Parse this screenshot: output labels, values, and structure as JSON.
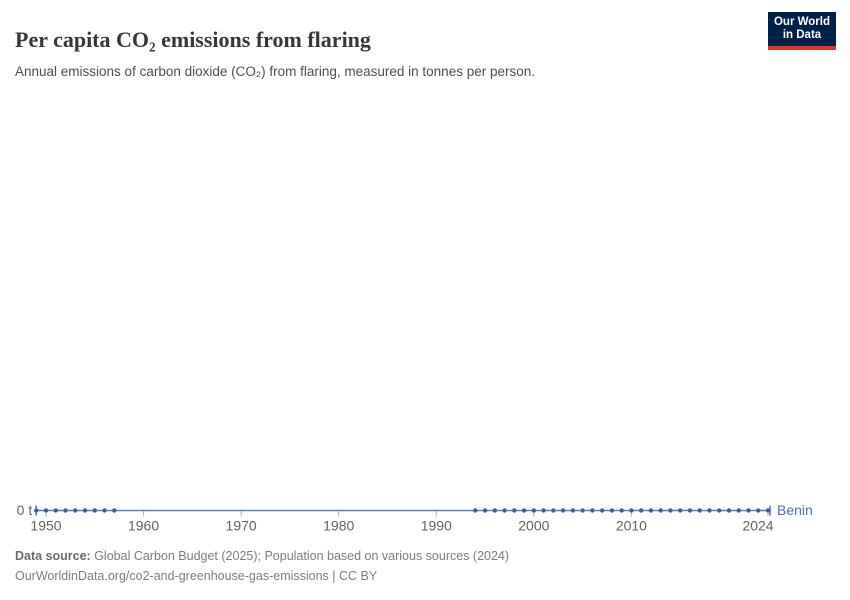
{
  "header": {
    "title": "Per capita CO₂ emissions from flaring",
    "subtitle": "Annual emissions of carbon dioxide (CO₂) from flaring, measured in tonnes per person."
  },
  "logo": {
    "line1": "Our World",
    "line2": "in Data",
    "bg_color": "#002147",
    "bar_color": "#dc3627"
  },
  "chart_data": {
    "type": "line",
    "title": "Per capita CO₂ emissions from flaring",
    "ylabel": "tonnes per person",
    "y_zero_label": "0 t",
    "grid": false,
    "legend_position": "end-of-line",
    "x_axis_ticks": [
      1950,
      1960,
      1970,
      1980,
      1990,
      2000,
      2010,
      2024
    ],
    "x_range": [
      1949,
      2024
    ],
    "ylim": [
      0,
      0
    ],
    "series": [
      {
        "name": "Benin",
        "label_color": "#4c6fae",
        "line_color": "#5c7db6",
        "marker_color": "#3c5f9f",
        "line_span_years": [
          1949,
          2024
        ],
        "segments": [
          {
            "years": [
              1949,
              1950,
              1951,
              1952,
              1953,
              1954,
              1955,
              1956,
              1957
            ],
            "values": [
              0,
              0,
              0,
              0,
              0,
              0,
              0,
              0,
              0
            ]
          },
          {
            "years": [
              1994,
              1995,
              1996,
              1997,
              1998,
              1999,
              2000,
              2001,
              2002,
              2003,
              2004,
              2005,
              2006,
              2007,
              2008,
              2009,
              2010,
              2011,
              2012,
              2013,
              2014,
              2015,
              2016,
              2017,
              2018,
              2019,
              2020,
              2021,
              2022,
              2023,
              2024
            ],
            "values": [
              0,
              0,
              0,
              0,
              0,
              0,
              0,
              0,
              0,
              0,
              0,
              0,
              0,
              0,
              0,
              0,
              0,
              0,
              0,
              0,
              0,
              0,
              0,
              0,
              0,
              0,
              0,
              0,
              0,
              0,
              0
            ]
          }
        ]
      }
    ],
    "axis_colors": {
      "tick": "#b3b3b3",
      "tick_label": "#636363"
    }
  },
  "footer": {
    "source_label": "Data source:",
    "source_text": " Global Carbon Budget (2025); Population based on various sources (2024)",
    "link_text": "OurWorldinData.org/co2-and-greenhouse-gas-emissions",
    "separator": " | ",
    "license": "CC BY"
  }
}
